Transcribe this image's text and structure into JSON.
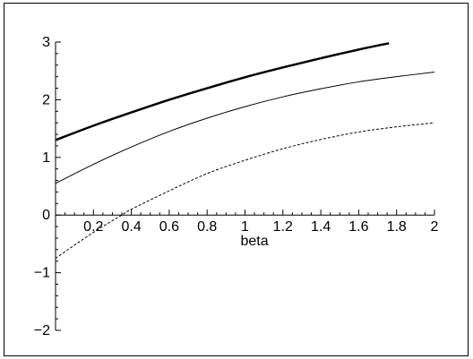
{
  "chart_data": {
    "type": "line",
    "xlabel": "beta",
    "ylabel": "",
    "xlim": [
      0,
      2
    ],
    "ylim": [
      -2,
      3
    ],
    "x_ticks": [
      0.2,
      0.4,
      0.6,
      0.8,
      1,
      1.2,
      1.4,
      1.6,
      1.8,
      2
    ],
    "x_tick_labels": [
      "0.2",
      "0.4",
      "0.6",
      "0.8",
      "1",
      "1.2",
      "1.4",
      "1.6",
      "1.8",
      "2"
    ],
    "y_ticks": [
      -2,
      -1,
      0,
      1,
      2,
      3
    ],
    "y_tick_labels": [
      "−2",
      "−1",
      "0",
      "1",
      "2",
      "3"
    ],
    "grid": false,
    "series": [
      {
        "style": "thick",
        "color": "#000000",
        "x": [
          0,
          0.2,
          0.4,
          0.6,
          0.8,
          1.0,
          1.2,
          1.4,
          1.6,
          1.76
        ],
        "y": [
          1.3,
          1.55,
          1.78,
          2.0,
          2.2,
          2.39,
          2.56,
          2.72,
          2.87,
          2.98
        ]
      },
      {
        "style": "thin",
        "color": "#000000",
        "x": [
          0,
          0.2,
          0.4,
          0.6,
          0.8,
          1.0,
          1.2,
          1.4,
          1.6,
          1.8,
          2.0
        ],
        "y": [
          0.55,
          0.88,
          1.18,
          1.45,
          1.68,
          1.88,
          2.05,
          2.19,
          2.31,
          2.4,
          2.48
        ]
      },
      {
        "style": "dashed",
        "color": "#000000",
        "x": [
          0,
          0.2,
          0.35,
          0.4,
          0.6,
          0.8,
          1.0,
          1.2,
          1.4,
          1.6,
          1.8,
          2.0
        ],
        "y": [
          -0.75,
          -0.3,
          0.0,
          0.1,
          0.42,
          0.72,
          0.95,
          1.15,
          1.31,
          1.44,
          1.53,
          1.6
        ]
      }
    ]
  }
}
